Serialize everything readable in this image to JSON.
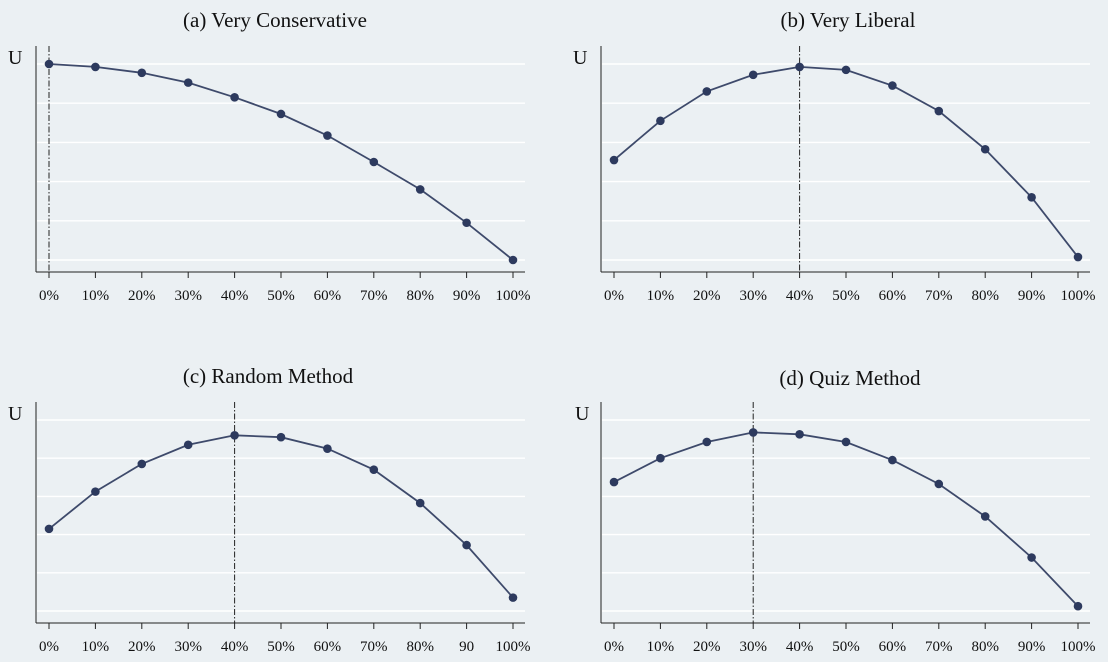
{
  "chart_data": [
    {
      "type": "line",
      "title": "(a)  Very Conservative",
      "ylabel": "U",
      "x_tick_labels": [
        "0%",
        "10%",
        "20%",
        "30%",
        "40%",
        "50%",
        "60%",
        "70%",
        "80%",
        "90%",
        "100%"
      ],
      "values": [
        1.0,
        0.985,
        0.955,
        0.905,
        0.83,
        0.745,
        0.635,
        0.5,
        0.36,
        0.19,
        0.0
      ],
      "reference_line_x": 0,
      "ylim": [
        0,
        1
      ],
      "grid": true,
      "colors": {
        "line": "#3e4a6b",
        "marker": "#2d3a5e"
      }
    },
    {
      "type": "line",
      "title": "(b)  Very Liberal",
      "ylabel": "U",
      "x_tick_labels": [
        "0%",
        "10%",
        "20%",
        "30%",
        "40%",
        "50%",
        "60%",
        "70%",
        "80%",
        "90%",
        "100%"
      ],
      "values": [
        0.51,
        0.71,
        0.86,
        0.945,
        0.985,
        0.97,
        0.89,
        0.76,
        0.565,
        0.32,
        0.015
      ],
      "reference_line_x": 4,
      "ylim": [
        0,
        1
      ],
      "grid": true,
      "colors": {
        "line": "#3e4a6b",
        "marker": "#2d3a5e"
      }
    },
    {
      "type": "line",
      "title": "(c)  Random Method",
      "ylabel": "U",
      "x_tick_labels": [
        "0%",
        "10%",
        "20%",
        "30%",
        "40%",
        "50%",
        "60%",
        "70%",
        "80%",
        "90",
        "100%"
      ],
      "values": [
        0.43,
        0.625,
        0.77,
        0.87,
        0.92,
        0.91,
        0.85,
        0.74,
        0.565,
        0.345,
        0.07
      ],
      "reference_line_x": 4,
      "ylim": [
        0,
        1
      ],
      "grid": true,
      "colors": {
        "line": "#3e4a6b",
        "marker": "#2d3a5e"
      }
    },
    {
      "type": "line",
      "title": "(d)  Quiz Method",
      "ylabel": "U",
      "x_tick_labels": [
        "0%",
        "10%",
        "20%",
        "30%",
        "40%",
        "50%",
        "60%",
        "70%",
        "80%",
        "90%",
        "100%"
      ],
      "values": [
        0.675,
        0.8,
        0.885,
        0.935,
        0.925,
        0.885,
        0.79,
        0.665,
        0.495,
        0.28,
        0.025
      ],
      "reference_line_x": 3,
      "ylim": [
        0,
        1
      ],
      "grid": true,
      "colors": {
        "line": "#3e4a6b",
        "marker": "#2d3a5e"
      }
    }
  ]
}
